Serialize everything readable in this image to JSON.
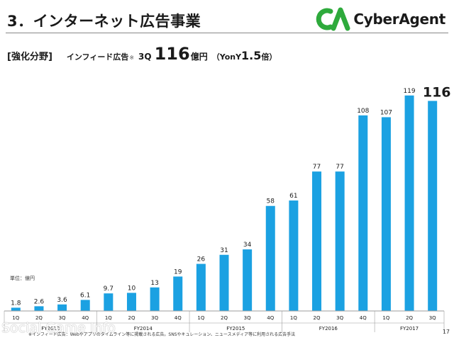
{
  "header": {
    "title": "3．インターネット広告事業",
    "logo_text": "CyberAgent",
    "logo_mark": "CA"
  },
  "subtitle": {
    "focus": "[強化分野]",
    "text": "インフィード広告",
    "note": "※",
    "quarter": "3Q",
    "value": "116",
    "unit": "億円",
    "yoy_prefix": "（YonY",
    "yoy_value": "1.5",
    "yoy_suffix": "倍）"
  },
  "unit_label": "単位：億円",
  "footnote": "※インフィード広告：Webやアプリのタイムライン等に掲載される広告。SNSやキュレーション、ニュースメディア等に利用される広告手法",
  "watermark": "Social Game Info",
  "page_number": "17",
  "colors": {
    "bar": "#1ba1e2",
    "axis": "#9e9e9e",
    "text": "#1a1a1a"
  },
  "chart_data": {
    "type": "bar",
    "ylabel": "単位：億円",
    "categories": [
      "1Q",
      "2Q",
      "3Q",
      "4Q",
      "1Q",
      "2Q",
      "3Q",
      "4Q",
      "1Q",
      "2Q",
      "3Q",
      "4Q",
      "1Q",
      "2Q",
      "3Q",
      "4Q",
      "1Q",
      "2Q",
      "3Q"
    ],
    "values": [
      1.8,
      2.6,
      3.6,
      6.1,
      9.7,
      10,
      13,
      19,
      26,
      31,
      34,
      58,
      61,
      77,
      77,
      108,
      107,
      119,
      116
    ],
    "value_labels": [
      "1.8",
      "2.6",
      "3.6",
      "6.1",
      "9.7",
      "10",
      "13",
      "19",
      "26",
      "31",
      "34",
      "58",
      "61",
      "77",
      "77",
      "108",
      "107",
      "119",
      "116"
    ],
    "groups": [
      {
        "label": "FY2013",
        "count": 4
      },
      {
        "label": "FY2014",
        "count": 4
      },
      {
        "label": "FY2015",
        "count": 4
      },
      {
        "label": "FY2016",
        "count": 4
      },
      {
        "label": "FY2017",
        "count": 3
      }
    ],
    "highlight_index": 18,
    "ylim": [
      0,
      124
    ],
    "grid": false
  }
}
